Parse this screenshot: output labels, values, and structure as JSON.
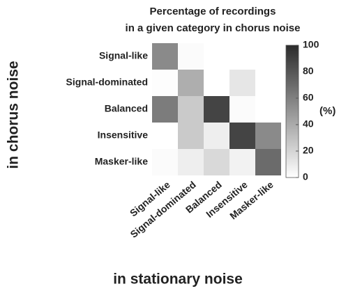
{
  "chart_data": {
    "type": "heatmap",
    "title": [
      "Percentage of recordings",
      "in a given category in chorus noise"
    ],
    "x_label": "in stationary noise",
    "y_label": "in chorus noise",
    "x_categories": [
      "Signal-like",
      "Signal-dominated",
      "Balanced",
      "Insensitive",
      "Masker-like"
    ],
    "y_categories": [
      "Signal-like",
      "Signal-dominated",
      "Balanced",
      "Insensitive",
      "Masker-like"
    ],
    "values": [
      [
        55,
        2,
        0,
        0,
        0
      ],
      [
        1,
        38,
        0,
        12,
        0
      ],
      [
        62,
        25,
        88,
        2,
        0
      ],
      [
        0,
        25,
        8,
        88,
        55
      ],
      [
        2,
        8,
        18,
        6,
        70
      ]
    ],
    "colormap": [
      "#ffffff",
      "#2b2b2b"
    ],
    "colorbar_lim": [
      0,
      100
    ],
    "colorbar_ticks": [
      0,
      20,
      40,
      60,
      80,
      100
    ],
    "colorbar_label": "(%)"
  }
}
